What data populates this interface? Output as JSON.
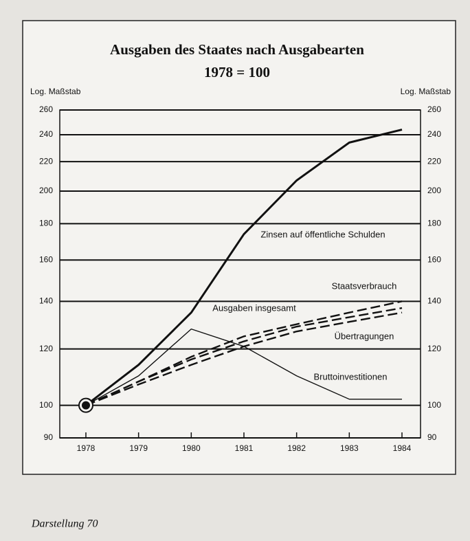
{
  "chart_data": {
    "type": "line",
    "title": "Ausgaben des Staates nach Ausgabearten",
    "subtitle": "1978 = 100",
    "y_label": "Log. Maßstab",
    "log_scale": true,
    "grid": true,
    "x": [
      "1978",
      "1979",
      "1980",
      "1981",
      "1982",
      "1983",
      "1984"
    ],
    "ylim": [
      90,
      260
    ],
    "yticks": [
      90,
      100,
      120,
      140,
      160,
      180,
      200,
      220,
      240,
      260
    ],
    "series": [
      {
        "name": "Zinsen auf öffentliche Schulden",
        "color": "#111111",
        "dashed": false,
        "values": [
          100,
          114,
          135,
          174,
          207,
          234,
          244
        ]
      },
      {
        "name": "Staatsverbrauch",
        "color": "#111111",
        "dashed": true,
        "values": [
          100,
          108,
          117,
          125,
          130,
          135,
          140
        ]
      },
      {
        "name": "Ausgaben insgesamt",
        "color": "#111111",
        "dashed": true,
        "values": [
          100,
          108,
          116,
          123,
          129,
          133,
          137
        ]
      },
      {
        "name": "Übertragungen",
        "color": "#111111",
        "dashed": true,
        "values": [
          100,
          107,
          114,
          121,
          127,
          131,
          135
        ]
      },
      {
        "name": "Bruttoinvestitionen",
        "color": "#111111",
        "dashed": false,
        "values": [
          100,
          110,
          128,
          121,
          110,
          102,
          102
        ]
      }
    ],
    "footer": "Darstellung 70"
  }
}
